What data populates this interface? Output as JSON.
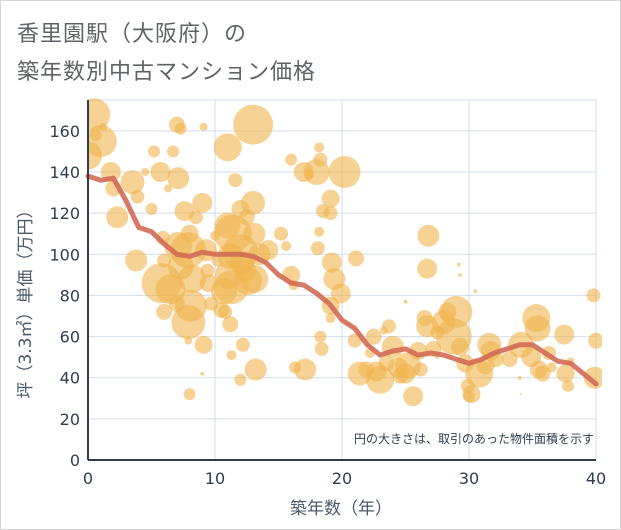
{
  "title_line1": "香里園駅（大阪府）の",
  "title_line2": "築年数別中古マンション価格",
  "chart_data": {
    "type": "scatter",
    "xlabel": "築年数（年）",
    "ylabel": "坪（3.3㎡）単価（万円）",
    "note": "円の大きさは、取引のあった物件面積を示す",
    "xlim": [
      0,
      40
    ],
    "ylim": [
      0,
      175
    ],
    "xticks": [
      0,
      10,
      20,
      30,
      40
    ],
    "yticks": [
      0,
      20,
      40,
      60,
      80,
      100,
      120,
      140,
      160
    ],
    "grid": true,
    "colors": {
      "bubble": "#f0b44c",
      "line": "#d16a55",
      "grid": "#d3dde7",
      "axis": "#2f3e4e"
    },
    "bubbles": [
      [
        0,
        148,
        14
      ],
      [
        0.5,
        168,
        16
      ],
      [
        1,
        155,
        16
      ],
      [
        0.6,
        158,
        6
      ],
      [
        1.2,
        162,
        4
      ],
      [
        1.8,
        140,
        10
      ],
      [
        2,
        132,
        8
      ],
      [
        2.3,
        118,
        11
      ],
      [
        3.5,
        135,
        12
      ],
      [
        3.9,
        128,
        7
      ],
      [
        4.5,
        140,
        4
      ],
      [
        5,
        122,
        6
      ],
      [
        5.2,
        150,
        6
      ],
      [
        3.8,
        97,
        11
      ],
      [
        5.9,
        108,
        7
      ],
      [
        6,
        97,
        7
      ],
      [
        5.7,
        140,
        10
      ],
      [
        6.3,
        132,
        4
      ],
      [
        6.7,
        150,
        6
      ],
      [
        7,
        163,
        8
      ],
      [
        7.3,
        161,
        6
      ],
      [
        7.1,
        137,
        11
      ],
      [
        7.6,
        121,
        10
      ],
      [
        7.1,
        104,
        14
      ],
      [
        7.3,
        94,
        13
      ],
      [
        6.5,
        83,
        15
      ],
      [
        7,
        76,
        8
      ],
      [
        6,
        72,
        8
      ],
      [
        5.8,
        86,
        20
      ],
      [
        8,
        110,
        9
      ],
      [
        8.5,
        118,
        7
      ],
      [
        7.9,
        102,
        18
      ],
      [
        8.2,
        88,
        14
      ],
      [
        8.1,
        75,
        16
      ],
      [
        7.9,
        67,
        17
      ],
      [
        7.9,
        58,
        4
      ],
      [
        8,
        32,
        6
      ],
      [
        9,
        125,
        10
      ],
      [
        9.3,
        102,
        11
      ],
      [
        9.4,
        92,
        7
      ],
      [
        9.5,
        86,
        9
      ],
      [
        9.1,
        56,
        9
      ],
      [
        9.7,
        76,
        7
      ],
      [
        9.1,
        162,
        4
      ],
      [
        10,
        109,
        5
      ],
      [
        10.2,
        97,
        6
      ],
      [
        10.5,
        73,
        8
      ],
      [
        10.7,
        82,
        13
      ],
      [
        10.8,
        72,
        7
      ],
      [
        11,
        152,
        14
      ],
      [
        11,
        114,
        13
      ],
      [
        11.2,
        99,
        13
      ],
      [
        11.4,
        110,
        19
      ],
      [
        11.1,
        90,
        14
      ],
      [
        11.3,
        84,
        17
      ],
      [
        11.2,
        66,
        8
      ],
      [
        11.3,
        51,
        5
      ],
      [
        11.6,
        136,
        7
      ],
      [
        12,
        122,
        9
      ],
      [
        12,
        101,
        18
      ],
      [
        12.1,
        96,
        12
      ],
      [
        12.4,
        92,
        11
      ],
      [
        12.6,
        87,
        14
      ],
      [
        12.2,
        56,
        7
      ],
      [
        12,
        39,
        6
      ],
      [
        12.5,
        118,
        8
      ],
      [
        13,
        163,
        20
      ],
      [
        13,
        125,
        12
      ],
      [
        13.1,
        110,
        11
      ],
      [
        13.1,
        88,
        14
      ],
      [
        13.2,
        44,
        11
      ],
      [
        13.5,
        100,
        11
      ],
      [
        14.2,
        102,
        10
      ],
      [
        15.2,
        110,
        7
      ],
      [
        16,
        90,
        9
      ],
      [
        15.6,
        104,
        5
      ],
      [
        16,
        146,
        6
      ],
      [
        16.2,
        85,
        5
      ],
      [
        16.3,
        45,
        6
      ],
      [
        17,
        140,
        10
      ],
      [
        17.1,
        44,
        11
      ],
      [
        17.4,
        139,
        5
      ],
      [
        18,
        140,
        13
      ],
      [
        18.2,
        152,
        5
      ],
      [
        18.3,
        146,
        7
      ],
      [
        18.5,
        121,
        7
      ],
      [
        18.1,
        103,
        7
      ],
      [
        18.2,
        111,
        5
      ],
      [
        18.3,
        60,
        6
      ],
      [
        18.4,
        54,
        7
      ],
      [
        19.1,
        127,
        9
      ],
      [
        19.1,
        120,
        7
      ],
      [
        19.2,
        96,
        10
      ],
      [
        19.4,
        88,
        11
      ],
      [
        19.1,
        75,
        9
      ],
      [
        19.1,
        69,
        5
      ],
      [
        19.9,
        81,
        10
      ],
      [
        20.2,
        140,
        16
      ],
      [
        21.1,
        98,
        8
      ],
      [
        21,
        58,
        7
      ],
      [
        21.4,
        42,
        12
      ],
      [
        21.9,
        44,
        8
      ],
      [
        22.2,
        52,
        5
      ],
      [
        22.5,
        60,
        8
      ],
      [
        22.7,
        43,
        10
      ],
      [
        23,
        39,
        14
      ],
      [
        23.3,
        63,
        4
      ],
      [
        23.7,
        65,
        7
      ],
      [
        23.5,
        47,
        8
      ],
      [
        24,
        55,
        11
      ],
      [
        24.4,
        45,
        10
      ],
      [
        24.6,
        41,
        8
      ],
      [
        25,
        42,
        10
      ],
      [
        25.2,
        46,
        13
      ],
      [
        25.6,
        31,
        10
      ],
      [
        26,
        53,
        9
      ],
      [
        26.2,
        44,
        7
      ],
      [
        26.8,
        109,
        11
      ],
      [
        26.7,
        93,
        10
      ],
      [
        26.5,
        69,
        8
      ],
      [
        26.7,
        65,
        11
      ],
      [
        27.5,
        62,
        7
      ],
      [
        27.2,
        54,
        8
      ],
      [
        28.3,
        72,
        9
      ],
      [
        28,
        67,
        12
      ],
      [
        28.8,
        60,
        18
      ],
      [
        29,
        72,
        16
      ],
      [
        29.3,
        55,
        9
      ],
      [
        29.7,
        47,
        9
      ],
      [
        29.9,
        36,
        7
      ],
      [
        30,
        31,
        6
      ],
      [
        30.2,
        32,
        9
      ],
      [
        30.8,
        42,
        14
      ],
      [
        31.3,
        46,
        9
      ],
      [
        31.6,
        56,
        12
      ],
      [
        31.7,
        53,
        10
      ],
      [
        32.1,
        49,
        8
      ],
      [
        33.2,
        49,
        8
      ],
      [
        34.1,
        56,
        13
      ],
      [
        34.9,
        50,
        10
      ],
      [
        35.3,
        69,
        14
      ],
      [
        35.4,
        64,
        13
      ],
      [
        35.5,
        44,
        9
      ],
      [
        35.8,
        42,
        8
      ],
      [
        36.3,
        52,
        7
      ],
      [
        36.5,
        45,
        5
      ],
      [
        37.5,
        61,
        10
      ],
      [
        37.6,
        42,
        9
      ],
      [
        37.8,
        36,
        6
      ],
      [
        38,
        48,
        4
      ],
      [
        39.8,
        80,
        7
      ],
      [
        40,
        58,
        8
      ],
      [
        39.9,
        40,
        11
      ],
      [
        30.5,
        82,
        2
      ],
      [
        29.2,
        95,
        2
      ],
      [
        9,
        42,
        2
      ],
      [
        27.5,
        50,
        2
      ],
      [
        25,
        77,
        2
      ],
      [
        29.3,
        90,
        2
      ],
      [
        34,
        40,
        2
      ],
      [
        34.1,
        32,
        1
      ]
    ],
    "trend_x": [
      0,
      1,
      2,
      3,
      4,
      5,
      6,
      7,
      8,
      9,
      10,
      11,
      12,
      13,
      14,
      15,
      16,
      17,
      18,
      19,
      20,
      21,
      22,
      23,
      24,
      25,
      26,
      27,
      28,
      29,
      30,
      31,
      32,
      33,
      34,
      35,
      36,
      37,
      38,
      39,
      40
    ],
    "trend_y": [
      138,
      136,
      137,
      126,
      113,
      111,
      105,
      100,
      99,
      101,
      100,
      100,
      100,
      99,
      96,
      90,
      86,
      85,
      81,
      76,
      68,
      64,
      56,
      51,
      53,
      54,
      51,
      52,
      51,
      49,
      47,
      49,
      52,
      54,
      56,
      56,
      52,
      48,
      47,
      42,
      37
    ]
  }
}
